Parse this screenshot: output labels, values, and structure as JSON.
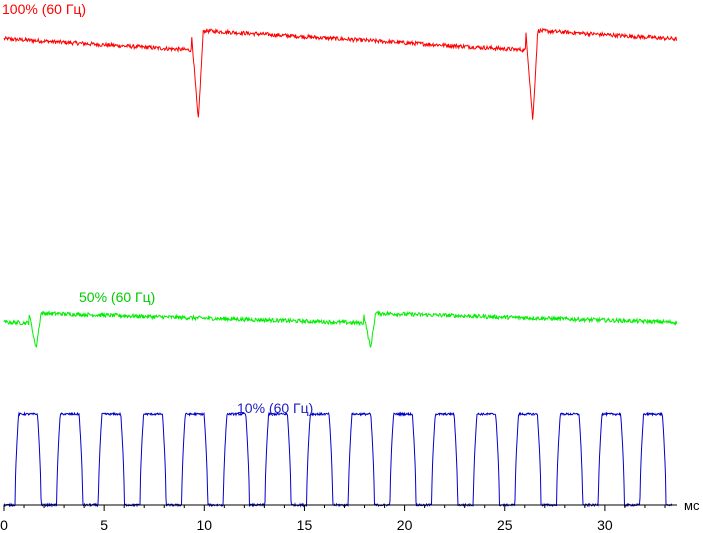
{
  "chart_data": {
    "type": "line",
    "xlabel": "мс",
    "xlim": [
      0,
      33.3
    ],
    "x_ticks": [
      0,
      5,
      10,
      15,
      20,
      25,
      30
    ],
    "grid": false,
    "series": [
      {
        "name": "100% (60 Гц)",
        "color": "#ff0000",
        "pwm_frequency_hz": 60,
        "dip_times_ms": [
          9.7,
          26.4
        ],
        "plateau_start_level": 0.94,
        "plateau_end_level": 0.9,
        "dip_min_level": 0.76
      },
      {
        "name": "50% (60 Гц)",
        "color": "#00ee00",
        "pwm_frequency_hz": 60,
        "dip_times_ms": [
          1.6,
          18.3
        ],
        "plateau_start_level": 0.38,
        "plateau_end_level": 0.36,
        "dip_min_level": 0.31
      },
      {
        "name": "10% (60 Гц)",
        "color": "#0000cc",
        "pwm_frequency_hz": 60,
        "pulse_count": 16,
        "pulse_start_ms": 0.55,
        "pulse_period_ms": 2.08,
        "pulse_width_ms": 1.3,
        "high_level": 0.18,
        "low_level": 0.0
      }
    ]
  }
}
